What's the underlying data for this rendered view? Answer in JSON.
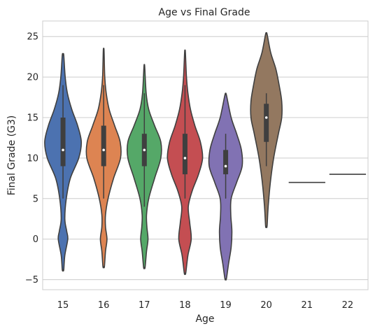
{
  "chart_data": {
    "type": "violin",
    "title": "Age vs Final Grade",
    "xlabel": "Age",
    "ylabel": "Final Grade (G3)",
    "ylim": [
      -6.5,
      27
    ],
    "yticks": [
      -5,
      0,
      5,
      10,
      15,
      20,
      25
    ],
    "grid": true,
    "categories": [
      "15",
      "16",
      "17",
      "18",
      "19",
      "20",
      "21",
      "22"
    ],
    "series": [
      {
        "age": "15",
        "color": "#4C72B0",
        "min": -3.8,
        "max": 22.7,
        "median": 11,
        "q1": 9,
        "q3": 15,
        "whisker_low": 5,
        "whisker_high": 19,
        "density": [
          [
            -3.8,
            0.02
          ],
          [
            -2,
            0.05
          ],
          [
            0,
            0.13
          ],
          [
            1,
            0.1
          ],
          [
            2.5,
            0.05
          ],
          [
            5,
            0.09
          ],
          [
            7.5,
            0.2
          ],
          [
            10,
            0.43
          ],
          [
            12,
            0.5
          ],
          [
            14,
            0.4
          ],
          [
            16,
            0.24
          ],
          [
            18,
            0.12
          ],
          [
            20,
            0.06
          ],
          [
            22.7,
            0.02
          ]
        ]
      },
      {
        "age": "16",
        "color": "#DD8452",
        "min": -3.4,
        "max": 23.3,
        "median": 11,
        "q1": 9,
        "q3": 14,
        "whisker_low": 5,
        "whisker_high": 19,
        "density": [
          [
            -3.4,
            0.02
          ],
          [
            -1.5,
            0.05
          ],
          [
            0,
            0.09
          ],
          [
            1.5,
            0.05
          ],
          [
            3,
            0.05
          ],
          [
            5,
            0.12
          ],
          [
            7.5,
            0.27
          ],
          [
            10,
            0.46
          ],
          [
            12,
            0.45
          ],
          [
            14,
            0.3
          ],
          [
            16,
            0.15
          ],
          [
            18,
            0.07
          ],
          [
            20,
            0.03
          ],
          [
            23.3,
            0.01
          ]
        ]
      },
      {
        "age": "17",
        "color": "#55A868",
        "min": -3.5,
        "max": 21.3,
        "median": 11,
        "q1": 9,
        "q3": 13,
        "whisker_low": 4,
        "whisker_high": 18,
        "density": [
          [
            -3.5,
            0.02
          ],
          [
            -1.5,
            0.06
          ],
          [
            0,
            0.1
          ],
          [
            1.5,
            0.07
          ],
          [
            3,
            0.06
          ],
          [
            5,
            0.12
          ],
          [
            7.5,
            0.28
          ],
          [
            10,
            0.45
          ],
          [
            12,
            0.45
          ],
          [
            14,
            0.28
          ],
          [
            16,
            0.12
          ],
          [
            18,
            0.05
          ],
          [
            21.3,
            0.01
          ]
        ]
      },
      {
        "age": "18",
        "color": "#C44E52",
        "min": -4.2,
        "max": 23.1,
        "median": 10,
        "q1": 8,
        "q3": 13,
        "whisker_low": 5,
        "whisker_high": 19,
        "density": [
          [
            -4.2,
            0.02
          ],
          [
            -2,
            0.08
          ],
          [
            0,
            0.17
          ],
          [
            2,
            0.13
          ],
          [
            4,
            0.09
          ],
          [
            6,
            0.2
          ],
          [
            8,
            0.37
          ],
          [
            10,
            0.48
          ],
          [
            12,
            0.42
          ],
          [
            14,
            0.27
          ],
          [
            16,
            0.15
          ],
          [
            18,
            0.08
          ],
          [
            20,
            0.04
          ],
          [
            23.1,
            0.01
          ]
        ]
      },
      {
        "age": "19",
        "color": "#8172B3",
        "min": -4.9,
        "max": 17.8,
        "median": 9,
        "q1": 8,
        "q3": 11,
        "whisker_low": 5,
        "whisker_high": 13,
        "density": [
          [
            -4.9,
            0.02
          ],
          [
            -3,
            0.08
          ],
          [
            -1,
            0.15
          ],
          [
            1,
            0.17
          ],
          [
            3,
            0.14
          ],
          [
            5,
            0.15
          ],
          [
            7,
            0.3
          ],
          [
            9,
            0.45
          ],
          [
            11,
            0.43
          ],
          [
            13,
            0.3
          ],
          [
            15,
            0.15
          ],
          [
            17.8,
            0.02
          ]
        ]
      },
      {
        "age": "20",
        "color": "#937860",
        "min": 1.6,
        "max": 25.3,
        "median": 15,
        "q1": 12,
        "q3": 16.7,
        "whisker_low": 9,
        "whisker_high": 18,
        "density": [
          [
            1.6,
            0.02
          ],
          [
            4,
            0.05
          ],
          [
            7,
            0.11
          ],
          [
            10,
            0.2
          ],
          [
            13,
            0.33
          ],
          [
            15,
            0.42
          ],
          [
            17,
            0.42
          ],
          [
            19,
            0.35
          ],
          [
            21,
            0.26
          ],
          [
            23,
            0.12
          ],
          [
            25.3,
            0.02
          ]
        ]
      },
      {
        "age": "21",
        "color": "#DA8BC3",
        "single_value": 7
      },
      {
        "age": "22",
        "color": "#8C8C8C",
        "single_value": 8
      }
    ]
  }
}
